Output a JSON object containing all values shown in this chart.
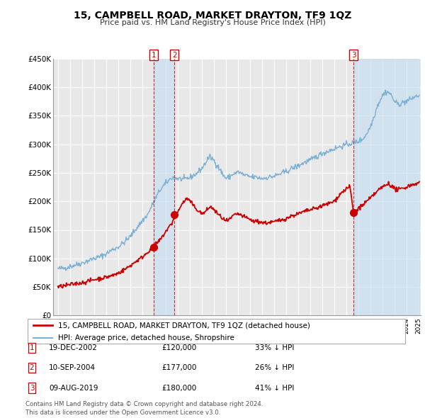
{
  "title": "15, CAMPBELL ROAD, MARKET DRAYTON, TF9 1QZ",
  "subtitle": "Price paid vs. HM Land Registry's House Price Index (HPI)",
  "hpi_label": "HPI: Average price, detached house, Shropshire",
  "property_label": "15, CAMPBELL ROAD, MARKET DRAYTON, TF9 1QZ (detached house)",
  "hpi_color": "#7ab0d4",
  "property_color": "#cc0000",
  "marker_color": "#cc0000",
  "shade_color": "#c8dff0",
  "ylim": [
    0,
    450000
  ],
  "yticks": [
    0,
    50000,
    100000,
    150000,
    200000,
    250000,
    300000,
    350000,
    400000,
    450000
  ],
  "ytick_labels": [
    "£0",
    "£50K",
    "£100K",
    "£150K",
    "£200K",
    "£250K",
    "£300K",
    "£350K",
    "£400K",
    "£450K"
  ],
  "transactions": [
    {
      "label": "1",
      "date": "19-DEC-2002",
      "price": 120000,
      "pct": "33%",
      "direction": "↓",
      "year": 2002.97
    },
    {
      "label": "2",
      "date": "10-SEP-2004",
      "price": 177000,
      "pct": "26%",
      "direction": "↓",
      "year": 2004.69
    },
    {
      "label": "3",
      "date": "09-AUG-2019",
      "price": 180000,
      "pct": "41%",
      "direction": "↓",
      "year": 2019.61
    }
  ],
  "footer": "Contains HM Land Registry data © Crown copyright and database right 2024.\nThis data is licensed under the Open Government Licence v3.0.",
  "background_color": "#e8e8e8",
  "grid_color": "#ffffff",
  "box_color": "#cc0000"
}
